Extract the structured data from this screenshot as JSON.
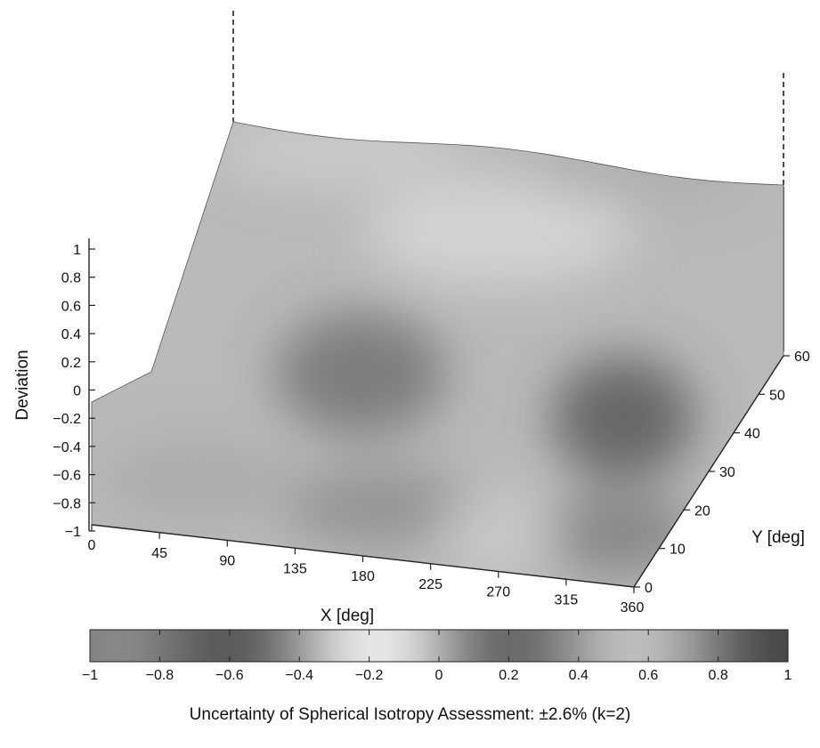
{
  "chart_data": {
    "type": "surface",
    "xlabel": "X [deg]",
    "ylabel": "Y [deg]",
    "zlabel": "Deviation",
    "x_ticks": [
      0,
      45,
      90,
      135,
      180,
      225,
      270,
      315,
      360
    ],
    "y_ticks": [
      0,
      10,
      20,
      30,
      40,
      50,
      60
    ],
    "z_ticks": [
      -1,
      -0.8,
      -0.6,
      -0.4,
      -0.2,
      0,
      0.2,
      0.4,
      0.6,
      0.8,
      1
    ],
    "xlim": [
      0,
      360
    ],
    "ylim": [
      0,
      60
    ],
    "zlim": [
      -1,
      1
    ],
    "colorbar": {
      "ticks": [
        -1,
        -0.8,
        -0.6,
        -0.4,
        -0.2,
        0,
        0.2,
        0.4,
        0.6,
        0.8,
        1
      ],
      "range": [
        -1,
        1
      ],
      "colormap": "grayscale",
      "label": "Uncertainty of Spherical Isotropy Assessment: ±2.6% (k=2)"
    },
    "features": [
      {
        "x": 175,
        "y": 40,
        "z": -0.2
      },
      {
        "x": 320,
        "y": 45,
        "z": -0.3
      }
    ],
    "grid": false
  }
}
